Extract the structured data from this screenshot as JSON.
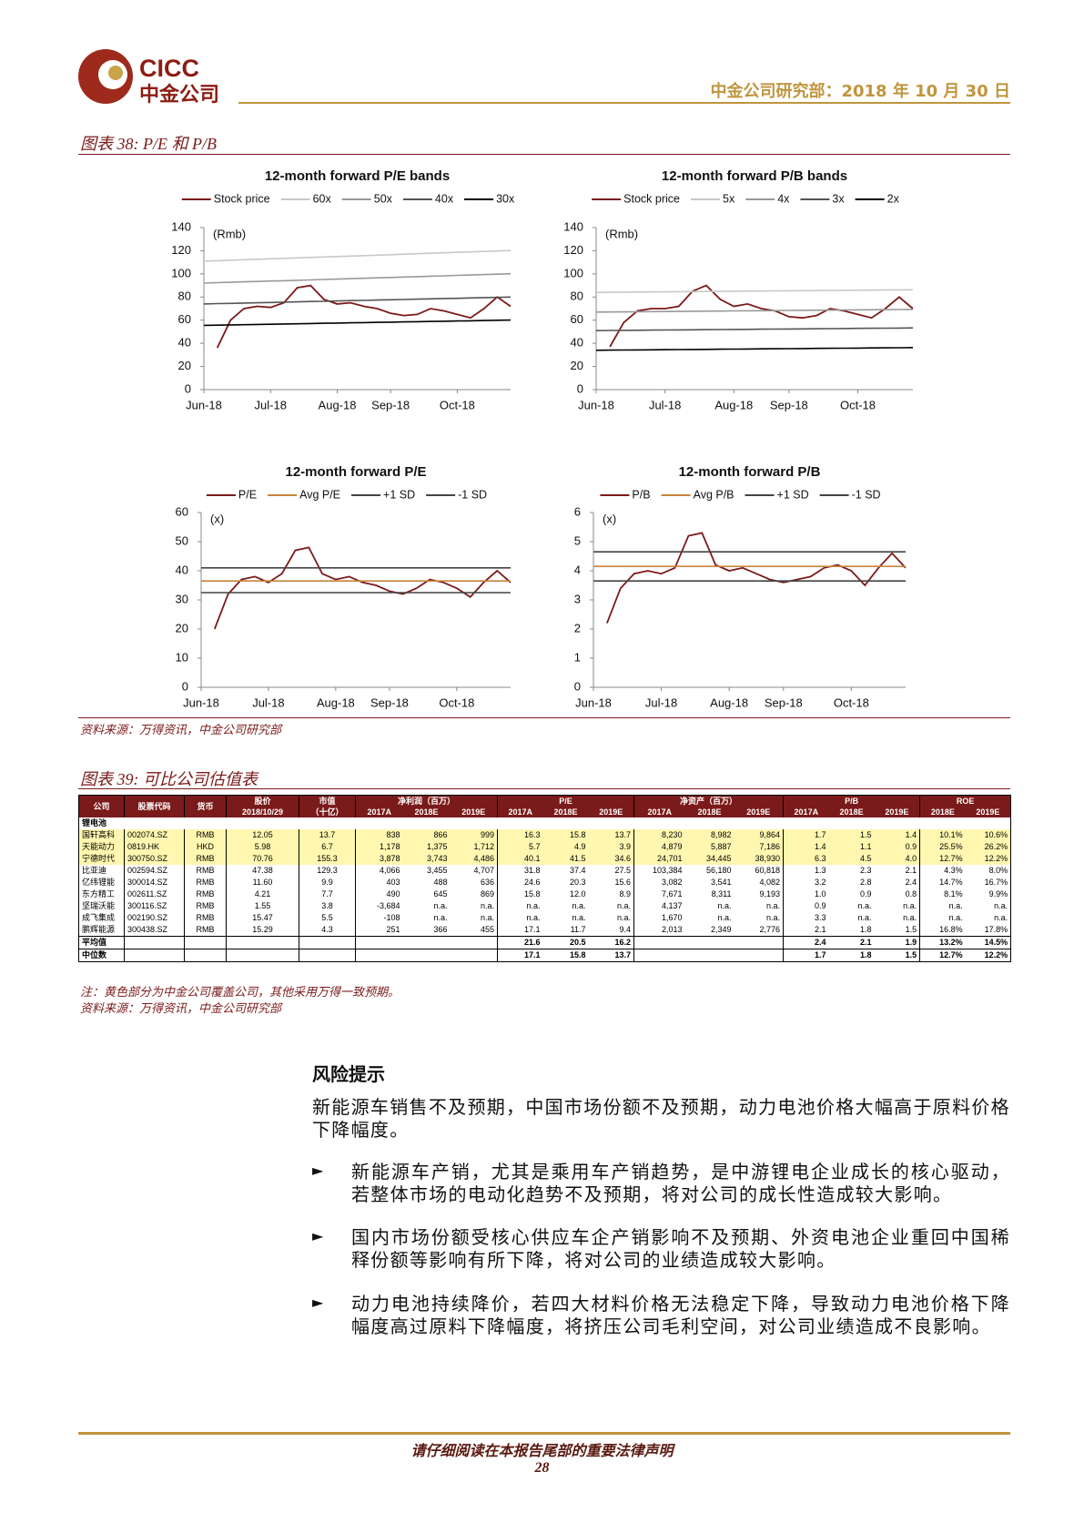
{
  "header": {
    "logo_en": "CICC",
    "logo_cn": "中金公司",
    "date": "中金公司研究部：2018 年 10 月 30 日"
  },
  "figure38": {
    "title": "图表 38: P/E 和 P/B",
    "source": "资料来源：万得资讯，中金公司研究部"
  },
  "chart_data": [
    {
      "type": "line",
      "title": "12-month forward P/E bands",
      "annotation": "(Rmb)",
      "legend": "top",
      "categories": [
        "Jun-18",
        null,
        null,
        null,
        null,
        "Jul-18",
        null,
        null,
        null,
        null,
        "Aug-18",
        null,
        null,
        null,
        "Sep-18",
        null,
        null,
        null,
        null,
        "Oct-18",
        null,
        null,
        null,
        null
      ],
      "ylim": [
        0,
        140
      ],
      "yticks": [
        0,
        20,
        40,
        60,
        80,
        100,
        120,
        140
      ],
      "series": [
        {
          "name": "Stock price",
          "color": "#7b1a1a",
          "values": [
            null,
            36,
            60,
            70,
            72,
            71,
            75,
            88,
            90,
            78,
            74,
            75,
            72,
            70,
            66,
            64,
            65,
            70,
            68,
            65,
            62,
            70,
            80,
            72
          ]
        },
        {
          "name": "60x",
          "color": "#c8c8c8",
          "values": [
            111.0,
            111.4,
            111.8,
            112.2,
            112.6,
            113.0,
            113.4,
            113.8,
            114.2,
            114.6,
            115.0,
            115.4,
            115.8,
            116.2,
            116.6,
            117.0,
            117.4,
            117.8,
            118.2,
            118.6,
            119.0,
            119.4,
            119.8,
            120.2
          ]
        },
        {
          "name": "50x",
          "color": "#999999",
          "values": [
            92.0,
            92.4,
            92.7,
            93.1,
            93.4,
            93.8,
            94.1,
            94.5,
            94.8,
            95.2,
            95.5,
            95.9,
            96.2,
            96.6,
            96.9,
            97.3,
            97.6,
            98.0,
            98.3,
            98.7,
            99.0,
            99.4,
            99.7,
            100.1
          ]
        },
        {
          "name": "40x",
          "color": "#555555",
          "values": [
            74.0,
            74.3,
            74.5,
            74.8,
            75.0,
            75.3,
            75.6,
            75.8,
            76.1,
            76.3,
            76.6,
            76.9,
            77.1,
            77.4,
            77.6,
            77.9,
            78.2,
            78.4,
            78.7,
            78.9,
            79.2,
            79.5,
            79.7,
            80.0
          ]
        },
        {
          "name": "30x",
          "color": "#000000",
          "values": [
            55.5,
            55.7,
            55.9,
            56.1,
            56.3,
            56.5,
            56.7,
            56.9,
            57.1,
            57.3,
            57.5,
            57.7,
            57.9,
            58.1,
            58.3,
            58.5,
            58.7,
            58.9,
            59.1,
            59.3,
            59.5,
            59.7,
            59.9,
            60.1
          ]
        }
      ]
    },
    {
      "type": "line",
      "title": "12-month forward P/B bands",
      "annotation": "(Rmb)",
      "legend": "top",
      "categories": [
        "Jun-18",
        null,
        null,
        null,
        null,
        "Jul-18",
        null,
        null,
        null,
        null,
        "Aug-18",
        null,
        null,
        null,
        "Sep-18",
        null,
        null,
        null,
        null,
        "Oct-18",
        null,
        null,
        null,
        null
      ],
      "ylim": [
        0,
        140
      ],
      "yticks": [
        0,
        20,
        40,
        60,
        80,
        100,
        120,
        140
      ],
      "series": [
        {
          "name": "Stock price",
          "color": "#7b1a1a",
          "values": [
            null,
            37,
            58,
            68,
            70,
            70,
            72,
            85,
            90,
            78,
            72,
            74,
            70,
            68,
            63,
            62,
            64,
            70,
            68,
            65,
            62,
            70,
            80,
            70
          ]
        },
        {
          "name": "5x",
          "color": "#c8c8c8",
          "values": [
            84.0,
            84.1,
            84.2,
            84.3,
            84.4,
            84.5,
            84.6,
            84.7,
            84.8,
            84.9,
            85.0,
            85.1,
            85.2,
            85.3,
            85.4,
            85.5,
            85.6,
            85.7,
            85.8,
            85.9,
            86.0,
            86.1,
            86.2,
            86.3
          ]
        },
        {
          "name": "4x",
          "color": "#999999",
          "values": [
            67.0,
            67.1,
            67.2,
            67.3,
            67.4,
            67.5,
            67.6,
            67.7,
            67.8,
            67.9,
            68.0,
            68.1,
            68.2,
            68.3,
            68.4,
            68.5,
            68.6,
            68.7,
            68.8,
            68.9,
            69.0,
            69.1,
            69.2,
            69.3
          ]
        },
        {
          "name": "3x",
          "color": "#555555",
          "values": [
            51.0,
            51.1,
            51.2,
            51.3,
            51.4,
            51.5,
            51.6,
            51.7,
            51.8,
            51.9,
            52.0,
            52.1,
            52.2,
            52.3,
            52.4,
            52.5,
            52.6,
            52.7,
            52.8,
            52.9,
            53.0,
            53.1,
            53.2,
            53.3
          ]
        },
        {
          "name": "2x",
          "color": "#000000",
          "values": [
            34.0,
            34.1,
            34.2,
            34.3,
            34.4,
            34.5,
            34.6,
            34.7,
            34.8,
            34.9,
            35.0,
            35.1,
            35.2,
            35.3,
            35.4,
            35.5,
            35.6,
            35.7,
            35.8,
            35.9,
            36.0,
            36.1,
            36.2,
            36.3
          ]
        }
      ]
    },
    {
      "type": "line",
      "title": "12-month forward P/E",
      "annotation": "(x)",
      "legend": "top",
      "categories": [
        "Jun-18",
        null,
        null,
        null,
        null,
        "Jul-18",
        null,
        null,
        null,
        null,
        "Aug-18",
        null,
        null,
        null,
        "Sep-18",
        null,
        null,
        null,
        null,
        "Oct-18",
        null,
        null,
        null,
        null
      ],
      "ylim": [
        0,
        60
      ],
      "yticks": [
        0,
        10,
        20,
        30,
        40,
        50,
        60
      ],
      "series": [
        {
          "name": "P/E",
          "color": "#7b1a1a",
          "values": [
            null,
            20,
            32,
            37,
            38,
            36,
            39,
            47,
            48,
            39,
            37,
            38,
            36,
            35,
            33,
            32,
            34,
            37,
            36,
            34,
            31,
            36,
            40,
            36
          ]
        },
        {
          "name": "Avg P/E",
          "color": "#c8843c",
          "values": [
            36.5,
            36.5,
            36.5,
            36.5,
            36.5,
            36.5,
            36.5,
            36.5,
            36.5,
            36.5,
            36.5,
            36.5,
            36.5,
            36.5,
            36.5,
            36.5,
            36.5,
            36.5,
            36.5,
            36.5,
            36.5,
            36.5,
            36.5,
            36.5
          ]
        },
        {
          "name": "+1 SD",
          "color": "#444444",
          "values": [
            41,
            41,
            41,
            41,
            41,
            41,
            41,
            41,
            41,
            41,
            41,
            41,
            41,
            41,
            41,
            41,
            41,
            41,
            41,
            41,
            41,
            41,
            41,
            41
          ]
        },
        {
          "name": "-1 SD",
          "color": "#444444",
          "values": [
            32.5,
            32.5,
            32.5,
            32.5,
            32.5,
            32.5,
            32.5,
            32.5,
            32.5,
            32.5,
            32.5,
            32.5,
            32.5,
            32.5,
            32.5,
            32.5,
            32.5,
            32.5,
            32.5,
            32.5,
            32.5,
            32.5,
            32.5,
            32.5
          ]
        }
      ]
    },
    {
      "type": "line",
      "title": "12-month forward P/B",
      "annotation": "(x)",
      "legend": "top",
      "categories": [
        "Jun-18",
        null,
        null,
        null,
        null,
        "Jul-18",
        null,
        null,
        null,
        null,
        "Aug-18",
        null,
        null,
        null,
        "Sep-18",
        null,
        null,
        null,
        null,
        "Oct-18",
        null,
        null,
        null,
        null
      ],
      "ylim": [
        0,
        6
      ],
      "yticks": [
        0,
        1,
        2,
        3,
        4,
        5,
        6
      ],
      "series": [
        {
          "name": "P/B",
          "color": "#7b1a1a",
          "values": [
            null,
            2.2,
            3.4,
            3.9,
            4.0,
            3.9,
            4.1,
            5.2,
            5.3,
            4.2,
            4.0,
            4.1,
            3.9,
            3.7,
            3.6,
            3.7,
            3.8,
            4.1,
            4.2,
            4.0,
            3.5,
            4.1,
            4.6,
            4.1
          ]
        },
        {
          "name": "Avg P/B",
          "color": "#c8843c",
          "values": [
            4.15,
            4.15,
            4.15,
            4.15,
            4.15,
            4.15,
            4.15,
            4.15,
            4.15,
            4.15,
            4.15,
            4.15,
            4.15,
            4.15,
            4.15,
            4.15,
            4.15,
            4.15,
            4.15,
            4.15,
            4.15,
            4.15,
            4.15,
            4.15
          ]
        },
        {
          "name": "+1 SD",
          "color": "#444444",
          "values": [
            4.65,
            4.65,
            4.65,
            4.65,
            4.65,
            4.65,
            4.65,
            4.65,
            4.65,
            4.65,
            4.65,
            4.65,
            4.65,
            4.65,
            4.65,
            4.65,
            4.65,
            4.65,
            4.65,
            4.65,
            4.65,
            4.65,
            4.65,
            4.65
          ]
        },
        {
          "name": "-1 SD",
          "color": "#444444",
          "values": [
            3.65,
            3.65,
            3.65,
            3.65,
            3.65,
            3.65,
            3.65,
            3.65,
            3.65,
            3.65,
            3.65,
            3.65,
            3.65,
            3.65,
            3.65,
            3.65,
            3.65,
            3.65,
            3.65,
            3.65,
            3.65,
            3.65,
            3.65,
            3.65
          ]
        }
      ]
    }
  ],
  "figure39": {
    "title": "图表 39: 可比公司估值表",
    "note": "注：黄色部分为中金公司覆盖公司，其他采用万得一致预期。",
    "source": "资料来源：万得资讯，中金公司研究部"
  },
  "table": {
    "header_row1": [
      "公司",
      "股票代码",
      "货币",
      "股价",
      "市值",
      "净利润（百万）",
      "P/E",
      "净资产（百万）",
      "P/B",
      "ROE"
    ],
    "header_row2": [
      "2018/10/29",
      "（十亿）",
      "2017A",
      "2018E",
      "2019E",
      "2017A",
      "2018E",
      "2019E",
      "2017A",
      "2018E",
      "2019E",
      "2017A",
      "2018E",
      "2019E",
      "2018E",
      "2019E"
    ],
    "group": "锂电池",
    "rows": [
      [
        "国轩高科",
        "002074.SZ",
        "RMB",
        "12.05",
        "13.7",
        "838",
        "866",
        "999",
        "16.3",
        "15.8",
        "13.7",
        "8,230",
        "8,982",
        "9,864",
        "1.7",
        "1.5",
        "1.4",
        "10.1%",
        "10.6%"
      ],
      [
        "天能动力",
        "0819.HK",
        "HKD",
        "5.98",
        "6.7",
        "1,178",
        "1,375",
        "1,712",
        "5.7",
        "4.9",
        "3.9",
        "4,879",
        "5,887",
        "7,186",
        "1.4",
        "1.1",
        "0.9",
        "25.5%",
        "26.2%"
      ],
      [
        "宁德时代",
        "300750.SZ",
        "RMB",
        "70.76",
        "155.3",
        "3,878",
        "3,743",
        "4,486",
        "40.1",
        "41.5",
        "34.6",
        "24,701",
        "34,445",
        "38,930",
        "6.3",
        "4.5",
        "4.0",
        "12.7%",
        "12.2%"
      ],
      [
        "比亚迪",
        "002594.SZ",
        "RMB",
        "47.38",
        "129.3",
        "4,066",
        "3,455",
        "4,707",
        "31.8",
        "37.4",
        "27.5",
        "103,384",
        "56,180",
        "60,818",
        "1.3",
        "2.3",
        "2.1",
        "4.3%",
        "8.0%"
      ],
      [
        "亿纬锂能",
        "300014.SZ",
        "RMB",
        "11.60",
        "9.9",
        "403",
        "488",
        "636",
        "24.6",
        "20.3",
        "15.6",
        "3,082",
        "3,541",
        "4,082",
        "3.2",
        "2.8",
        "2.4",
        "14.7%",
        "16.7%"
      ],
      [
        "东方精工",
        "002611.SZ",
        "RMB",
        "4.21",
        "7.7",
        "490",
        "645",
        "869",
        "15.8",
        "12.0",
        "8.9",
        "7,671",
        "8,311",
        "9,193",
        "1.0",
        "0.9",
        "0.8",
        "8.1%",
        "9.9%"
      ],
      [
        "坚瑞沃能",
        "300116.SZ",
        "RMB",
        "1.55",
        "3.8",
        "-3,684",
        "n.a.",
        "n.a.",
        "n.a.",
        "n.a.",
        "n.a.",
        "4,137",
        "n.a.",
        "n.a.",
        "0.9",
        "n.a.",
        "n.a.",
        "n.a.",
        "n.a."
      ],
      [
        "成飞集成",
        "002190.SZ",
        "RMB",
        "15.47",
        "5.5",
        "-108",
        "n.a.",
        "n.a.",
        "n.a.",
        "n.a.",
        "n.a.",
        "1,670",
        "n.a.",
        "n.a.",
        "3.3",
        "n.a.",
        "n.a.",
        "n.a.",
        "n.a."
      ],
      [
        "鹏辉能源",
        "300438.SZ",
        "RMB",
        "15.29",
        "4.3",
        "251",
        "366",
        "455",
        "17.1",
        "11.7",
        "9.4",
        "2,013",
        "2,349",
        "2,776",
        "2.1",
        "1.8",
        "1.5",
        "16.8%",
        "17.8%"
      ]
    ],
    "summary": [
      {
        "label": "平均值",
        "pe": [
          "21.6",
          "20.5",
          "16.2"
        ],
        "pb": [
          "2.4",
          "2.1",
          "1.9"
        ],
        "roe": [
          "13.2%",
          "14.5%"
        ]
      },
      {
        "label": "中位数",
        "pe": [
          "17.1",
          "15.8",
          "13.7"
        ],
        "pb": [
          "1.7",
          "1.8",
          "1.5"
        ],
        "roe": [
          "12.7%",
          "12.2%"
        ]
      }
    ]
  },
  "risk": {
    "heading": "风险提示",
    "intro": "新能源车销售不及预期，中国市场份额不及预期，动力电池价格大幅高于原料价格下降幅度。",
    "bullets": [
      "新能源车产销，尤其是乘用车产销趋势，是中游锂电企业成长的核心驱动，若整体市场的电动化趋势不及预期，将对公司的成长性造成较大影响。",
      "国内市场份额受核心供应车企产销影响不及预期、外资电池企业重回中国稀释份额等影响有所下降，将对公司的业绩造成较大影响。",
      "动力电池持续降价，若四大材料价格无法稳定下降，导致动力电池价格下降幅度高过原料下降幅度，将挤压公司毛利空间，对公司业绩造成不良影响。"
    ]
  },
  "footer": {
    "disclaimer": "请仔细阅读在本报告尾部的重要法律声明",
    "page": "28"
  }
}
